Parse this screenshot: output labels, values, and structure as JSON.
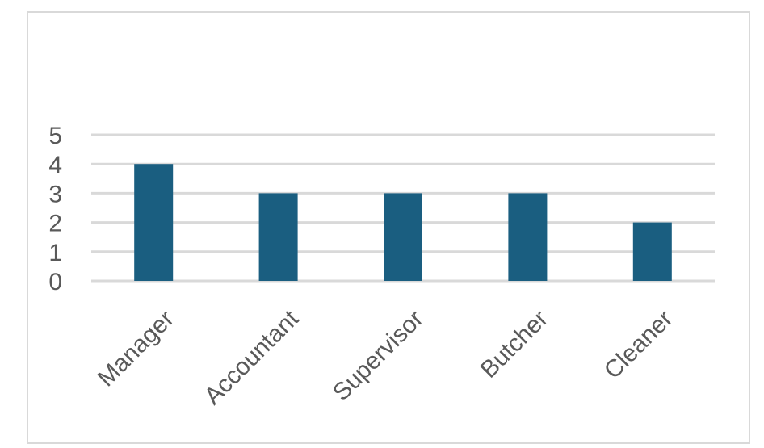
{
  "chart_data": {
    "type": "bar",
    "categories": [
      "Manager",
      "Accountant",
      "Supervisor",
      "Butcher",
      "Cleaner"
    ],
    "values": [
      4,
      3,
      3,
      3,
      2
    ],
    "title": "",
    "xlabel": "",
    "ylabel": "",
    "ylim": [
      0,
      5
    ],
    "yticks": [
      "0",
      "1",
      "2",
      "3",
      "4",
      "5"
    ],
    "grid": true,
    "legend": "none",
    "colors": {
      "bar": "#1a5e80",
      "grid": "#d9d9d9",
      "text": "#595959",
      "border": "#d9d9d9"
    }
  }
}
